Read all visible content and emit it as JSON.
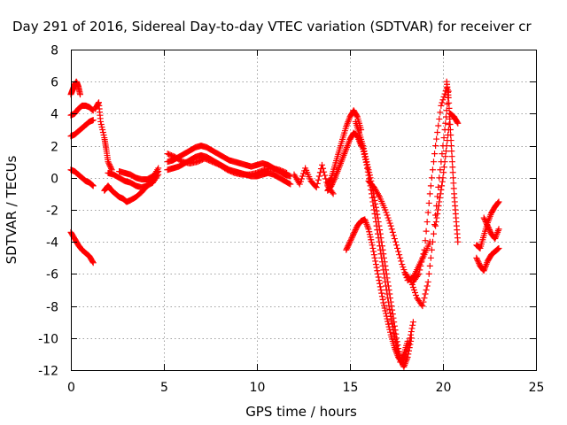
{
  "chart_data": {
    "type": "scatter",
    "title": "Day 291 of 2016, Sidereal Day-to-day VTEC variation (SDTVAR) for receiver cr",
    "xlabel": "GPS time / hours",
    "ylabel": "SDTVAR / TECUs",
    "xlim": [
      0,
      25
    ],
    "ylim": [
      -12,
      8
    ],
    "x_ticks": [
      "0",
      "5",
      "10",
      "15",
      "20",
      "25"
    ],
    "y_ticks": [
      "8",
      "6",
      "4",
      "2",
      "0",
      "-2",
      "-4",
      "-6",
      "-8",
      "-10",
      "-12"
    ],
    "grid": true,
    "marker": "+",
    "color": "#ff0000",
    "series": [
      {
        "segments": [
          {
            "x": [
              0.0,
              0.1,
              0.2,
              0.3,
              0.4,
              0.5
            ],
            "y": [
              5.2,
              5.5,
              5.8,
              6.0,
              5.7,
              5.2
            ]
          },
          {
            "x": [
              0.0,
              0.2,
              0.4,
              0.6,
              0.8,
              1.0,
              1.2
            ],
            "y": [
              3.9,
              4.0,
              4.3,
              4.5,
              4.5,
              4.4,
              4.2
            ]
          },
          {
            "x": [
              0.0,
              0.2,
              0.4,
              0.6,
              0.8,
              1.0,
              1.2
            ],
            "y": [
              2.6,
              2.7,
              2.9,
              3.1,
              3.3,
              3.5,
              3.6
            ]
          },
          {
            "x": [
              0.0,
              0.2,
              0.4,
              0.6,
              0.8,
              1.0,
              1.2
            ],
            "y": [
              0.5,
              0.4,
              0.2,
              0.0,
              -0.2,
              -0.3,
              -0.5
            ]
          },
          {
            "x": [
              0.0,
              0.2,
              0.4,
              0.6,
              0.8,
              1.0,
              1.2
            ],
            "y": [
              -3.4,
              -3.8,
              -4.2,
              -4.5,
              -4.7,
              -4.9,
              -5.3
            ]
          },
          {
            "x": [
              1.3,
              1.5,
              1.6,
              1.8,
              1.9,
              2.0,
              2.2
            ],
            "y": [
              4.3,
              4.7,
              3.5,
              2.5,
              1.8,
              1.0,
              0.5
            ]
          },
          {
            "x": [
              1.8,
              2.0,
              2.2,
              2.4,
              2.6,
              2.8,
              3.0,
              3.2,
              3.5,
              3.8,
              4.1,
              4.4,
              4.7
            ],
            "y": [
              -0.8,
              -0.5,
              -0.8,
              -1.0,
              -1.2,
              -1.3,
              -1.5,
              -1.4,
              -1.2,
              -0.9,
              -0.5,
              0.0,
              0.6
            ]
          },
          {
            "x": [
              2.0,
              2.3,
              2.6,
              2.9,
              3.2,
              3.5,
              3.8,
              4.1,
              4.4,
              4.7
            ],
            "y": [
              0.3,
              0.2,
              0.0,
              -0.2,
              -0.3,
              -0.5,
              -0.6,
              -0.5,
              -0.3,
              0.2
            ]
          },
          {
            "x": [
              2.6,
              2.9,
              3.2,
              3.5,
              3.8,
              4.1,
              4.4,
              4.7
            ],
            "y": [
              0.4,
              0.3,
              0.2,
              0.0,
              -0.1,
              -0.1,
              0.1,
              0.4
            ]
          },
          {
            "x": [
              5.2,
              5.5,
              5.8,
              6.1,
              6.4,
              6.7,
              7.0,
              7.3,
              7.6,
              7.9,
              8.2,
              8.5,
              8.8,
              9.1,
              9.4,
              9.7,
              10.0,
              10.3,
              10.6,
              10.9,
              11.2,
              11.5,
              11.8
            ],
            "y": [
              1.0,
              1.1,
              1.3,
              1.5,
              1.7,
              1.9,
              2.0,
              1.9,
              1.7,
              1.5,
              1.3,
              1.1,
              1.0,
              0.9,
              0.8,
              0.7,
              0.8,
              0.9,
              0.8,
              0.6,
              0.4,
              0.2,
              0.1
            ]
          },
          {
            "x": [
              5.2,
              5.5,
              5.8,
              6.1,
              6.4,
              6.7,
              7.0,
              7.3,
              7.6,
              7.9,
              8.2,
              8.5,
              8.8,
              9.1,
              9.4,
              9.7,
              10.0,
              10.3,
              10.6,
              10.9,
              11.2,
              11.5,
              11.8
            ],
            "y": [
              0.5,
              0.6,
              0.7,
              0.9,
              1.1,
              1.3,
              1.4,
              1.3,
              1.1,
              0.9,
              0.7,
              0.5,
              0.4,
              0.3,
              0.2,
              0.1,
              0.1,
              0.2,
              0.3,
              0.2,
              0.0,
              -0.2,
              -0.4
            ]
          },
          {
            "x": [
              5.2,
              5.6,
              6.0,
              6.4,
              6.8,
              7.2,
              7.6,
              8.0,
              8.4,
              8.8,
              9.2,
              9.6,
              10.0,
              10.4,
              10.8,
              11.2,
              11.6
            ],
            "y": [
              1.5,
              1.3,
              1.0,
              0.9,
              1.0,
              1.2,
              1.0,
              0.8,
              0.5,
              0.3,
              0.2,
              0.2,
              0.3,
              0.5,
              0.6,
              0.5,
              0.3
            ]
          },
          {
            "x": [
              12.0,
              12.3,
              12.6,
              12.9,
              13.2,
              13.5,
              13.8,
              14.1
            ],
            "y": [
              0.2,
              -0.4,
              0.6,
              -0.2,
              -0.6,
              0.8,
              -0.5,
              -1.0
            ]
          },
          {
            "x": [
              13.8,
              14.0,
              14.2,
              14.4,
              14.6,
              14.8,
              15.0,
              15.2,
              15.4,
              15.6
            ],
            "y": [
              -0.4,
              0.0,
              0.8,
              1.6,
              2.4,
              3.2,
              3.8,
              4.2,
              3.8,
              3.0
            ]
          },
          {
            "x": [
              13.8,
              14.0,
              14.2,
              14.4,
              14.6,
              14.8,
              15.0,
              15.2,
              15.4,
              15.6
            ],
            "y": [
              -0.8,
              -0.5,
              0.0,
              0.6,
              1.2,
              1.8,
              2.4,
              2.8,
              2.6,
              2.0
            ]
          },
          {
            "x": [
              15.3,
              15.5,
              15.7,
              15.9,
              16.1,
              16.3,
              16.5,
              16.7,
              16.9,
              17.1,
              17.3,
              17.5,
              17.7,
              17.9,
              18.1,
              18.3
            ],
            "y": [
              3.5,
              2.8,
              2.0,
              1.0,
              0.0,
              -1.2,
              -2.5,
              -4.0,
              -5.5,
              -7.0,
              -8.5,
              -10.0,
              -11.3,
              -11.8,
              -11.2,
              -10.0
            ]
          },
          {
            "x": [
              15.5,
              15.7,
              15.9,
              16.1,
              16.3,
              16.5,
              16.7,
              16.9,
              17.1,
              17.3,
              17.5,
              17.7,
              17.9,
              18.1
            ],
            "y": [
              2.5,
              1.8,
              0.8,
              -0.5,
              -2.0,
              -3.5,
              -5.0,
              -6.5,
              -8.0,
              -9.3,
              -10.5,
              -11.5,
              -11.0,
              -10.2
            ]
          },
          {
            "x": [
              14.8,
              15.0,
              15.2,
              15.4,
              15.6,
              15.8,
              16.0,
              16.2,
              16.4,
              16.6,
              16.8,
              17.0,
              17.2,
              17.4,
              17.6,
              17.8,
              18.0,
              18.2,
              18.4
            ],
            "y": [
              -4.5,
              -4.0,
              -3.5,
              -3.0,
              -2.7,
              -2.6,
              -3.2,
              -4.2,
              -5.4,
              -6.6,
              -7.8,
              -8.8,
              -9.8,
              -10.6,
              -11.2,
              -11.4,
              -11.0,
              -10.2,
              -9.0
            ]
          },
          {
            "x": [
              16.0,
              16.3,
              16.6,
              16.9,
              17.2,
              17.5,
              17.8,
              18.1,
              18.4,
              18.7,
              19.0,
              19.3
            ],
            "y": [
              -0.2,
              -0.6,
              -1.2,
              -2.0,
              -3.0,
              -4.2,
              -5.4,
              -6.4,
              -6.2,
              -5.5,
              -4.8,
              -4.0
            ]
          },
          {
            "x": [
              18.0,
              18.3,
              18.6,
              18.9,
              19.2,
              19.5,
              19.8,
              20.1,
              20.3
            ],
            "y": [
              -6.0,
              -6.5,
              -7.5,
              -8.0,
              -6.5,
              -3.5,
              0.0,
              3.0,
              5.4
            ]
          },
          {
            "x": [
              18.4,
              18.7,
              19.0,
              19.3,
              19.6,
              19.9,
              20.2
            ],
            "y": [
              -6.5,
              -6.0,
              -4.5,
              -1.0,
              2.0,
              4.5,
              5.6
            ]
          },
          {
            "x": [
              19.6,
              19.8,
              20.0,
              20.2,
              20.4,
              20.6,
              20.8
            ],
            "y": [
              -3.0,
              -1.5,
              0.0,
              2.0,
              4.0,
              3.8,
              3.4
            ]
          },
          {
            "x": [
              20.2,
              20.3,
              20.4,
              20.5,
              20.6,
              20.7,
              20.8
            ],
            "y": [
              6.0,
              5.0,
              3.0,
              1.0,
              -1.0,
              -2.5,
              -4.0
            ]
          },
          {
            "x": [
              21.8,
              22.0,
              22.2,
              22.4,
              22.6,
              22.8,
              23.0
            ],
            "y": [
              -5.0,
              -5.5,
              -5.8,
              -5.2,
              -4.8,
              -4.6,
              -4.4
            ]
          },
          {
            "x": [
              21.8,
              22.0,
              22.2,
              22.4,
              22.6,
              22.8,
              23.0
            ],
            "y": [
              -4.2,
              -4.4,
              -3.6,
              -2.8,
              -2.2,
              -1.8,
              -1.5
            ]
          },
          {
            "x": [
              22.2,
              22.4,
              22.6,
              22.8,
              23.0
            ],
            "y": [
              -2.5,
              -3.0,
              -3.5,
              -3.8,
              -3.2
            ]
          }
        ]
      }
    ]
  }
}
